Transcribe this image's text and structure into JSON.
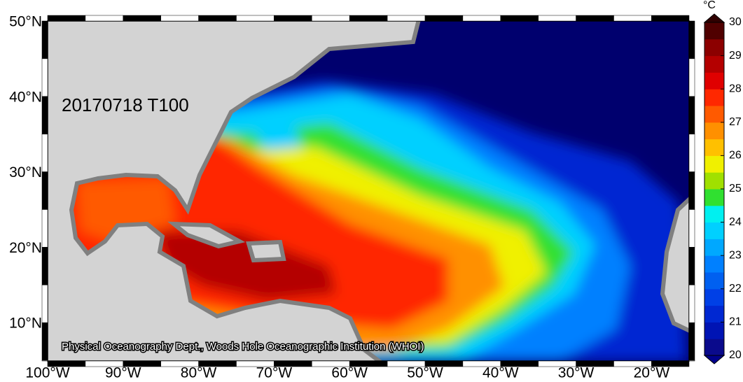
{
  "map": {
    "title": "20170718 T100",
    "credit": "Physical Oceanography Dept., Woods Hole Oceanographic Institution (WHOI)",
    "lat_labels": [
      "50°N",
      "40°N",
      "30°N",
      "20°N",
      "10°N"
    ],
    "lon_labels": [
      "100°W",
      "90°W",
      "80°W",
      "70°W",
      "60°W",
      "50°W",
      "40°W",
      "30°W",
      "20°W"
    ],
    "colorbar": {
      "unit": "°C",
      "ticks": [
        20,
        21,
        22,
        23,
        24,
        25,
        26,
        27,
        28,
        29,
        30
      ],
      "colors": [
        "#0a0a8c",
        "#0014b4",
        "#0028d2",
        "#0040e6",
        "#0060f0",
        "#0080ff",
        "#00a8ff",
        "#00d0ff",
        "#00f0f0",
        "#30e030",
        "#a0e000",
        "#f0f000",
        "#ffc000",
        "#ff9000",
        "#ff5a00",
        "#ff2800",
        "#e00000",
        "#b40000",
        "#8c0000",
        "#500000"
      ]
    }
  }
}
